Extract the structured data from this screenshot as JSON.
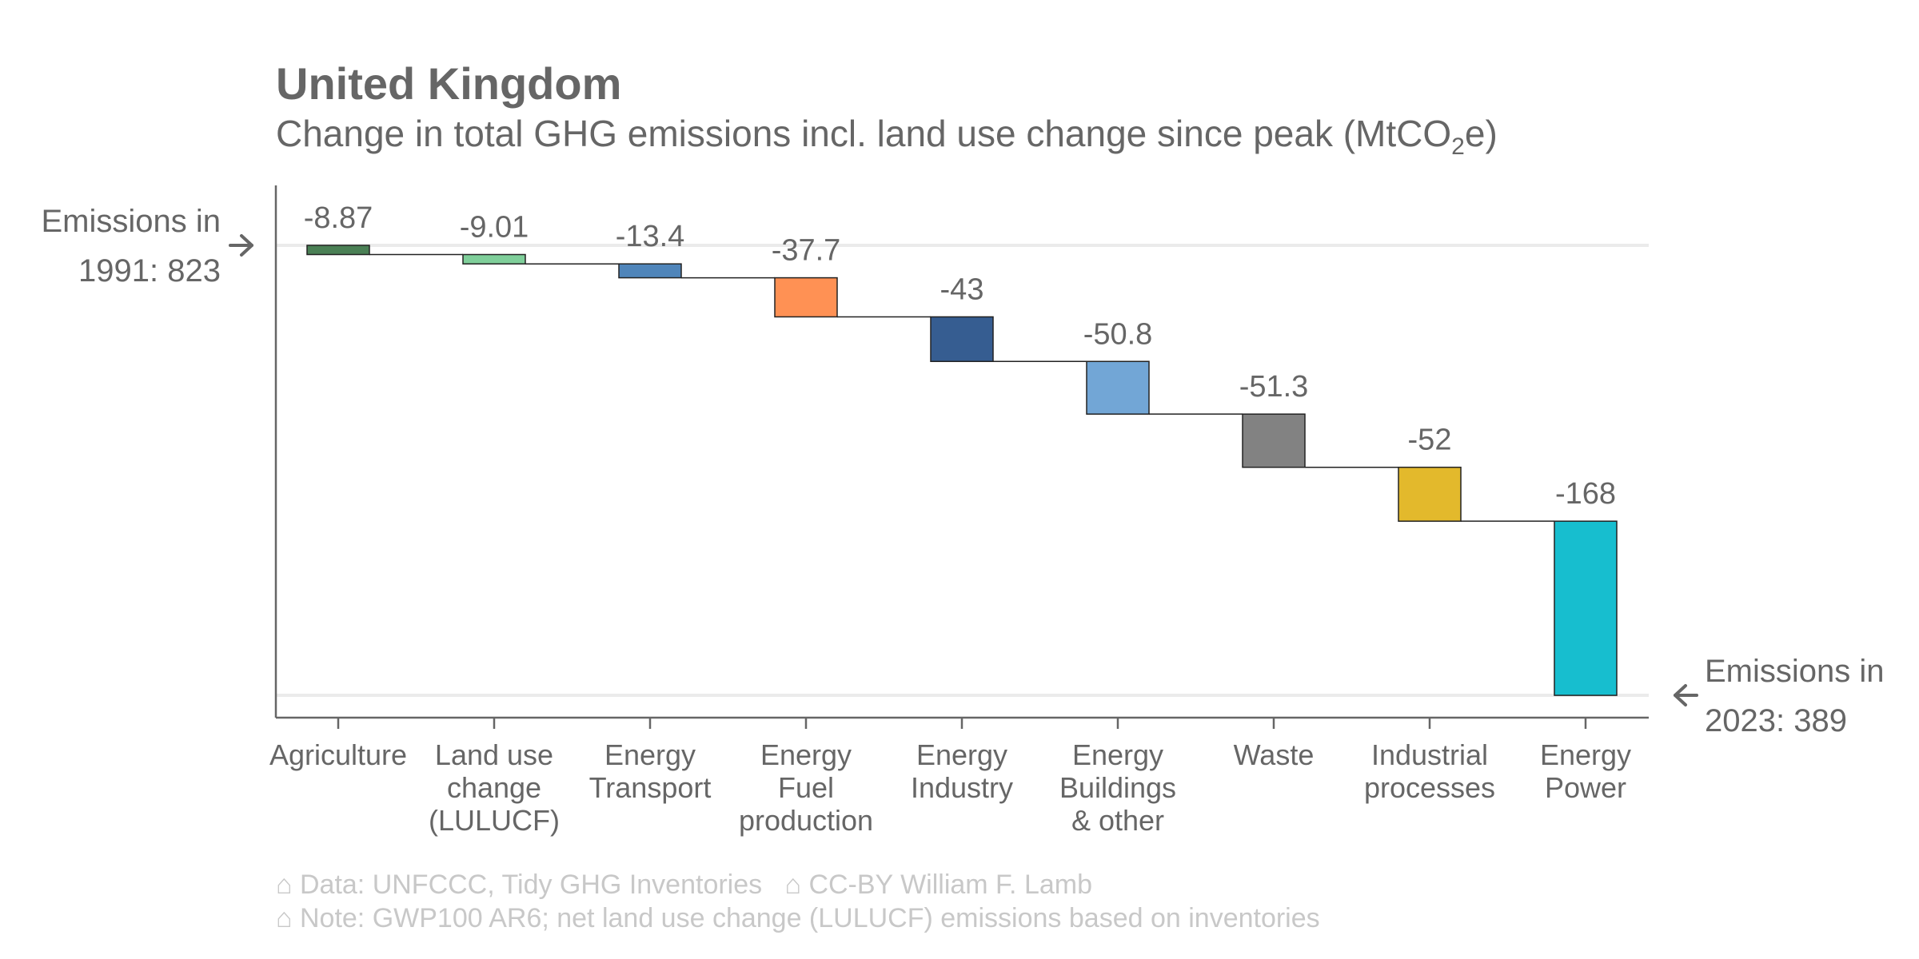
{
  "title": "United Kingdom",
  "subtitle_main": "Change in total GHG emissions incl. land use change since peak (MtCO",
  "subtitle_sub": "2",
  "subtitle_end": "e)",
  "start_label": [
    "Emissions in",
    "1991: 823"
  ],
  "end_label": [
    "Emissions in",
    "2023: 389"
  ],
  "notes": [
    "⌂ Data: UNFCCC, Tidy GHG Inventories   ⌂ CC-BY William F. Lamb",
    "⌂ Note: GWP100 AR6; net land use change (LULUCF) emissions based on inventories"
  ],
  "chart_data": {
    "type": "bar",
    "subtype": "waterfall",
    "start": {
      "year": 1991,
      "value": 823
    },
    "end": {
      "year": 2023,
      "value": 389
    },
    "categories": [
      [
        "Agriculture"
      ],
      [
        "Land use",
        "change",
        "(LULUCF)"
      ],
      [
        "Energy",
        "Transport"
      ],
      [
        "Energy",
        "Fuel",
        "production"
      ],
      [
        "Energy",
        "Industry"
      ],
      [
        "Energy",
        "Buildings",
        "& other"
      ],
      [
        "Waste"
      ],
      [
        "Industrial",
        "processes"
      ],
      [
        "Energy",
        "Power"
      ]
    ],
    "values": [
      -8.87,
      -9.01,
      -13.4,
      -37.7,
      -43,
      -50.8,
      -51.3,
      -52,
      -168
    ],
    "value_labels": [
      "-8.87",
      "-9.01",
      "-13.4",
      "-37.7",
      "-43",
      "-50.8",
      "-51.3",
      "-52",
      "-168"
    ],
    "colors": [
      "#4a8055",
      "#7fcf9a",
      "#4f85ba",
      "#ff9154",
      "#365d91",
      "#72a6d6",
      "#828282",
      "#e3b92c",
      "#17becf"
    ],
    "grid": false,
    "legend": "none"
  }
}
